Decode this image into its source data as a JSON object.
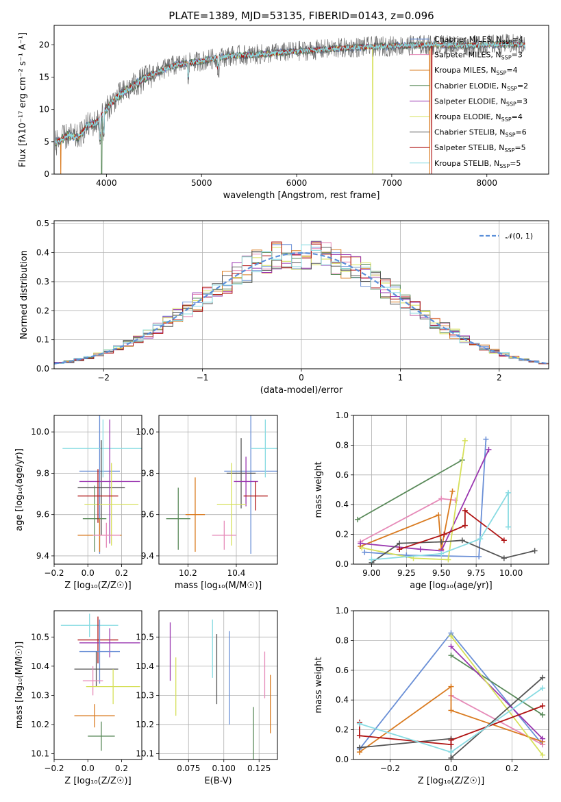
{
  "title": "PLATE=1389, MJD=53135, FIBERID=0143, z=0.096",
  "colors": {
    "chabrier_miles": "#6a8fd6",
    "salpeter_miles": "#e68ab8",
    "kroupa_miles": "#d97a1f",
    "chabrier_elodie": "#5a8a5a",
    "salpeter_elodie": "#9a37b0",
    "kroupa_elodie": "#d6e05a",
    "chabrier_stelib": "#555555",
    "salpeter_stelib": "#b01515",
    "kroupa_stelib": "#88dbe2",
    "normal": "#5b8fd9"
  },
  "legend": {
    "entries": [
      {
        "key": "chabrier_miles",
        "label": "Chabrier MILES, N",
        "sub": "SSP",
        "tail": "=4"
      },
      {
        "key": "salpeter_miles",
        "label": "Salpeter MILES, N",
        "sub": "SSP",
        "tail": "=3"
      },
      {
        "key": "kroupa_miles",
        "label": "Kroupa MILES, N",
        "sub": "SSP",
        "tail": "=4"
      },
      {
        "key": "chabrier_elodie",
        "label": "Chabrier ELODIE, N",
        "sub": "SSP",
        "tail": "=2"
      },
      {
        "key": "salpeter_elodie",
        "label": "Salpeter ELODIE, N",
        "sub": "SSP",
        "tail": "=3"
      },
      {
        "key": "kroupa_elodie",
        "label": "Kroupa ELODIE, N",
        "sub": "SSP",
        "tail": "=4"
      },
      {
        "key": "chabrier_stelib",
        "label": "Chabrier STELIB, N",
        "sub": "SSP",
        "tail": "=6"
      },
      {
        "key": "salpeter_stelib",
        "label": "Salpeter STELIB, N",
        "sub": "SSP",
        "tail": "=5"
      },
      {
        "key": "kroupa_stelib",
        "label": "Kroupa STELIB, N",
        "sub": "SSP",
        "tail": "=5"
      }
    ],
    "normal_label": "𝒩(0, 1)"
  },
  "chart_data": [
    {
      "id": "spectrum",
      "type": "line",
      "xlabel": "wavelength [Angstrom, rest frame]",
      "ylabel": "Flux [fλ10⁻¹⁷ erg cm⁻² s⁻¹ A⁻¹]",
      "xlim": [
        3450,
        8650
      ],
      "ylim": [
        0,
        23
      ],
      "xticks": [
        4000,
        5000,
        6000,
        7000,
        8000
      ],
      "yticks": [
        0,
        5,
        10,
        15,
        20
      ],
      "continuum": [
        [
          3460,
          4.8
        ],
        [
          3600,
          6.0
        ],
        [
          3700,
          5.6
        ],
        [
          3800,
          7.5
        ],
        [
          3900,
          8.0
        ],
        [
          4000,
          10.0
        ],
        [
          4100,
          11.8
        ],
        [
          4200,
          12.8
        ],
        [
          4300,
          13.8
        ],
        [
          4400,
          14.8
        ],
        [
          4500,
          15.5
        ],
        [
          4700,
          16.8
        ],
        [
          5000,
          17.5
        ],
        [
          5300,
          18.3
        ],
        [
          5600,
          18.5
        ],
        [
          6000,
          19.0
        ],
        [
          6300,
          19.3
        ],
        [
          6600,
          19.6
        ],
        [
          7000,
          19.8
        ],
        [
          7400,
          20.0
        ],
        [
          7800,
          19.9
        ],
        [
          8200,
          20.1
        ],
        [
          8400,
          20.0
        ]
      ],
      "drops": [
        [
          3520,
          "kroupa_miles"
        ],
        [
          3950,
          "chabrier_elodie"
        ],
        [
          6800,
          "kroupa_elodie"
        ],
        [
          7400,
          "kroupa_miles"
        ],
        [
          7420,
          "salpeter_stelib"
        ]
      ]
    },
    {
      "id": "residuals",
      "type": "histogram",
      "xlabel": "(data-model)/error",
      "ylabel": "Normed distribution",
      "xlim": [
        -2.5,
        2.5
      ],
      "ylim": [
        0,
        0.51
      ],
      "xticks": [
        -2,
        -1,
        0,
        1,
        2
      ],
      "yticks": [
        0,
        0.1,
        0.2,
        0.3,
        0.4,
        0.5
      ]
    },
    {
      "id": "age_vs_Z",
      "type": "errorbar",
      "xlabel": "Z [log₁₀(Z/Z☉)]",
      "ylabel": "age  [log₁₀(age/yr)]",
      "xlim": [
        -0.2,
        0.32
      ],
      "ylim": [
        9.36,
        10.08
      ],
      "xticks": [
        -0.2,
        0.0,
        0.2
      ],
      "yticks": [
        9.4,
        9.6,
        9.8,
        10.0
      ],
      "points": [
        {
          "key": "chabrier_miles",
          "x": 0.07,
          "y": 9.81,
          "xerr": 0.12,
          "yerr": 0.4
        },
        {
          "key": "kroupa_stelib",
          "x": 0.09,
          "y": 9.92,
          "xerr": 0.24,
          "yerr": 0.14
        },
        {
          "key": "chabrier_stelib",
          "x": 0.08,
          "y": 9.73,
          "xerr": 0.14,
          "yerr": 0.23
        },
        {
          "key": "salpeter_elodie",
          "x": 0.13,
          "y": 9.76,
          "xerr": 0.18,
          "yerr": 0.3
        },
        {
          "key": "chabrier_elodie",
          "x": 0.04,
          "y": 9.58,
          "xerr": 0.07,
          "yerr": 0.16
        },
        {
          "key": "kroupa_elodie",
          "x": 0.14,
          "y": 9.65,
          "xerr": 0.16,
          "yerr": 0.2
        },
        {
          "key": "salpeter_stelib",
          "x": 0.06,
          "y": 9.69,
          "xerr": 0.12,
          "yerr": 0.13
        },
        {
          "key": "kroupa_miles",
          "x": 0.07,
          "y": 9.5,
          "xerr": 0.13,
          "yerr": 0.08
        },
        {
          "key": "salpeter_miles",
          "x": 0.11,
          "y": 9.5,
          "xerr": 0.08,
          "yerr": 0.06
        }
      ]
    },
    {
      "id": "age_vs_mass",
      "type": "errorbar",
      "xlabel": "mass [log₁₀(M/M☉)]",
      "ylabel": "",
      "xlim": [
        10.08,
        10.57
      ],
      "ylim": [
        9.36,
        10.08
      ],
      "xticks": [
        10.2,
        10.4
      ],
      "yticks": [
        9.4,
        9.6,
        9.8,
        10.0
      ],
      "points": [
        {
          "key": "chabrier_miles",
          "x": 10.46,
          "y": 9.81,
          "xerr": 0.11,
          "yerr": 0.4
        },
        {
          "key": "kroupa_stelib",
          "x": 10.52,
          "y": 9.92,
          "xerr": 0.06,
          "yerr": 0.14
        },
        {
          "key": "chabrier_stelib",
          "x": 10.42,
          "y": 9.8,
          "xerr": 0.06,
          "yerr": 0.17
        },
        {
          "key": "salpeter_elodie",
          "x": 10.44,
          "y": 9.76,
          "xerr": 0.05,
          "yerr": 0.12
        },
        {
          "key": "chabrier_elodie",
          "x": 10.16,
          "y": 9.58,
          "xerr": 0.05,
          "yerr": 0.15
        },
        {
          "key": "kroupa_elodie",
          "x": 10.38,
          "y": 9.65,
          "xerr": 0.06,
          "yerr": 0.2
        },
        {
          "key": "salpeter_stelib",
          "x": 10.48,
          "y": 9.69,
          "xerr": 0.05,
          "yerr": 0.07
        },
        {
          "key": "kroupa_miles",
          "x": 10.23,
          "y": 9.6,
          "xerr": 0.04,
          "yerr": 0.18
        },
        {
          "key": "salpeter_miles",
          "x": 10.35,
          "y": 9.5,
          "xerr": 0.05,
          "yerr": 0.07
        }
      ]
    },
    {
      "id": "weight_vs_age",
      "type": "line",
      "xlabel": "age  [log₁₀(age/yr)]",
      "ylabel": "mass weight",
      "xlim": [
        8.87,
        10.27
      ],
      "ylim": [
        0,
        1
      ],
      "xticks": [
        9.0,
        9.25,
        9.5,
        9.75,
        10.0
      ],
      "yticks": [
        0,
        0.2,
        0.4,
        0.6,
        0.8,
        1.0
      ],
      "series": [
        {
          "key": "chabrier_miles",
          "points": [
            [
              8.95,
              0.08
            ],
            [
              9.25,
              0.06
            ],
            [
              9.77,
              0.05
            ],
            [
              9.82,
              0.84
            ]
          ]
        },
        {
          "key": "salpeter_miles",
          "points": [
            [
              8.92,
              0.15
            ],
            [
              9.5,
              0.44
            ],
            [
              9.6,
              0.43
            ]
          ]
        },
        {
          "key": "kroupa_miles",
          "points": [
            [
              8.92,
              0.12
            ],
            [
              9.48,
              0.33
            ],
            [
              9.5,
              0.1
            ],
            [
              9.58,
              0.49
            ]
          ]
        },
        {
          "key": "chabrier_elodie",
          "points": [
            [
              8.9,
              0.3
            ],
            [
              9.65,
              0.7
            ]
          ]
        },
        {
          "key": "salpeter_elodie",
          "points": [
            [
              8.92,
              0.14
            ],
            [
              9.35,
              0.1
            ],
            [
              9.5,
              0.09
            ],
            [
              9.84,
              0.77
            ]
          ]
        },
        {
          "key": "kroupa_elodie",
          "points": [
            [
              8.93,
              0.11
            ],
            [
              9.3,
              0.04
            ],
            [
              9.55,
              0.03
            ],
            [
              9.67,
              0.83
            ]
          ]
        },
        {
          "key": "chabrier_stelib",
          "points": [
            [
              9.0,
              0.01
            ],
            [
              9.2,
              0.14
            ],
            [
              9.5,
              0.15
            ],
            [
              9.65,
              0.16
            ],
            [
              9.95,
              0.04
            ],
            [
              10.17,
              0.09
            ]
          ]
        },
        {
          "key": "salpeter_stelib",
          "points": [
            [
              9.2,
              0.1
            ],
            [
              9.52,
              0.2
            ],
            [
              9.67,
              0.26
            ],
            [
              9.67,
              0.36
            ],
            [
              9.95,
              0.16
            ]
          ]
        },
        {
          "key": "kroupa_stelib",
          "points": [
            [
              9.0,
              0.03
            ],
            [
              9.5,
              0.07
            ],
            [
              9.78,
              0.17
            ],
            [
              9.98,
              0.48
            ],
            [
              9.98,
              0.25
            ]
          ]
        }
      ]
    },
    {
      "id": "mass_vs_Z",
      "type": "errorbar",
      "xlabel": "Z [log₁₀(Z/Z☉)]",
      "ylabel": "mass [log₁₀(M/M☉)]",
      "xlim": [
        -0.2,
        0.32
      ],
      "ylim": [
        10.08,
        10.59
      ],
      "xticks": [
        -0.2,
        0.0,
        0.2
      ],
      "yticks": [
        10.1,
        10.2,
        10.3,
        10.4,
        10.5
      ],
      "points": [
        {
          "key": "kroupa_stelib",
          "x": 0.01,
          "y": 10.54,
          "xerr": 0.17,
          "yerr": 0.04
        },
        {
          "key": "salpeter_stelib",
          "x": 0.06,
          "y": 10.49,
          "xerr": 0.12,
          "yerr": 0.08
        },
        {
          "key": "salpeter_elodie",
          "x": 0.13,
          "y": 10.48,
          "xerr": 0.18,
          "yerr": 0.05
        },
        {
          "key": "chabrier_miles",
          "x": 0.07,
          "y": 10.45,
          "xerr": 0.12,
          "yerr": 0.11
        },
        {
          "key": "chabrier_stelib",
          "x": 0.05,
          "y": 10.39,
          "xerr": 0.13,
          "yerr": 0.06
        },
        {
          "key": "salpeter_miles",
          "x": 0.03,
          "y": 10.35,
          "xerr": 0.06,
          "yerr": 0.05
        },
        {
          "key": "kroupa_elodie",
          "x": 0.15,
          "y": 10.33,
          "xerr": 0.16,
          "yerr": 0.06
        },
        {
          "key": "kroupa_miles",
          "x": 0.04,
          "y": 10.23,
          "xerr": 0.12,
          "yerr": 0.04
        },
        {
          "key": "chabrier_elodie",
          "x": 0.08,
          "y": 10.16,
          "xerr": 0.08,
          "yerr": 0.05
        }
      ]
    },
    {
      "id": "mass_vs_ebv",
      "type": "errorbar",
      "xlabel": "E(B-V)",
      "ylabel": "",
      "xlim": [
        0.054,
        0.138
      ],
      "ylim": [
        10.08,
        10.59
      ],
      "xticks": [
        0.075,
        0.1,
        0.125
      ],
      "yticks": [
        10.1,
        10.2,
        10.3,
        10.4,
        10.5
      ],
      "points": [
        {
          "key": "salpeter_elodie",
          "x": 0.062,
          "y": 10.45,
          "xerr": 0,
          "yerr": 0.1
        },
        {
          "key": "kroupa_elodie",
          "x": 0.066,
          "y": 10.33,
          "xerr": 0,
          "yerr": 0.1
        },
        {
          "key": "kroupa_stelib",
          "x": 0.092,
          "y": 10.46,
          "xerr": 0,
          "yerr": 0.1
        },
        {
          "key": "chabrier_stelib",
          "x": 0.095,
          "y": 10.39,
          "xerr": 0,
          "yerr": 0.12
        },
        {
          "key": "chabrier_miles",
          "x": 0.104,
          "y": 10.36,
          "xerr": 0,
          "yerr": 0.16
        },
        {
          "key": "chabrier_elodie",
          "x": 0.121,
          "y": 10.15,
          "xerr": 0,
          "yerr": 0.11
        },
        {
          "key": "salpeter_miles",
          "x": 0.129,
          "y": 10.37,
          "xerr": 0,
          "yerr": 0.08
        },
        {
          "key": "kroupa_miles",
          "x": 0.133,
          "y": 10.27,
          "xerr": 0,
          "yerr": 0.1
        }
      ]
    },
    {
      "id": "weight_vs_Z",
      "type": "line",
      "xlabel": "Z [log₁₀(Z/Z☉)]",
      "ylabel": "mass weight",
      "xlim": [
        -0.32,
        0.32
      ],
      "ylim": [
        0,
        1
      ],
      "xticks": [
        -0.2,
        0.0,
        0.2
      ],
      "yticks": [
        0,
        0.2,
        0.4,
        0.6,
        0.8,
        1.0
      ],
      "series": [
        {
          "key": "chabrier_miles",
          "points": [
            [
              -0.3,
              0.07
            ],
            [
              0.0,
              0.85
            ],
            [
              0.3,
              0.1
            ]
          ]
        },
        {
          "key": "salpeter_miles",
          "points": [
            [
              0.0,
              0.43
            ],
            [
              0.3,
              0.1
            ]
          ]
        },
        {
          "key": "kroupa_miles",
          "points": [
            [
              -0.3,
              0.05
            ],
            [
              0.0,
              0.49
            ],
            [
              0.0,
              0.33
            ],
            [
              0.3,
              0.12
            ]
          ]
        },
        {
          "key": "chabrier_elodie",
          "points": [
            [
              0.0,
              0.7
            ],
            [
              0.3,
              0.3
            ]
          ]
        },
        {
          "key": "salpeter_elodie",
          "points": [
            [
              0.0,
              0.76
            ],
            [
              0.3,
              0.14
            ]
          ]
        },
        {
          "key": "kroupa_elodie",
          "points": [
            [
              0.0,
              0.83
            ],
            [
              0.3,
              0.03
            ]
          ]
        },
        {
          "key": "chabrier_stelib",
          "points": [
            [
              -0.3,
              0.08
            ],
            [
              0.0,
              0.14
            ],
            [
              0.0,
              0.01
            ],
            [
              0.3,
              0.55
            ]
          ]
        },
        {
          "key": "salpeter_stelib",
          "points": [
            [
              -0.3,
              0.25
            ],
            [
              -0.3,
              0.16
            ],
            [
              0.0,
              0.1
            ],
            [
              0.0,
              0.13
            ],
            [
              0.3,
              0.36
            ]
          ]
        },
        {
          "key": "kroupa_stelib",
          "points": [
            [
              -0.3,
              0.24
            ],
            [
              0.0,
              0.05
            ],
            [
              0.3,
              0.48
            ]
          ]
        }
      ]
    }
  ]
}
